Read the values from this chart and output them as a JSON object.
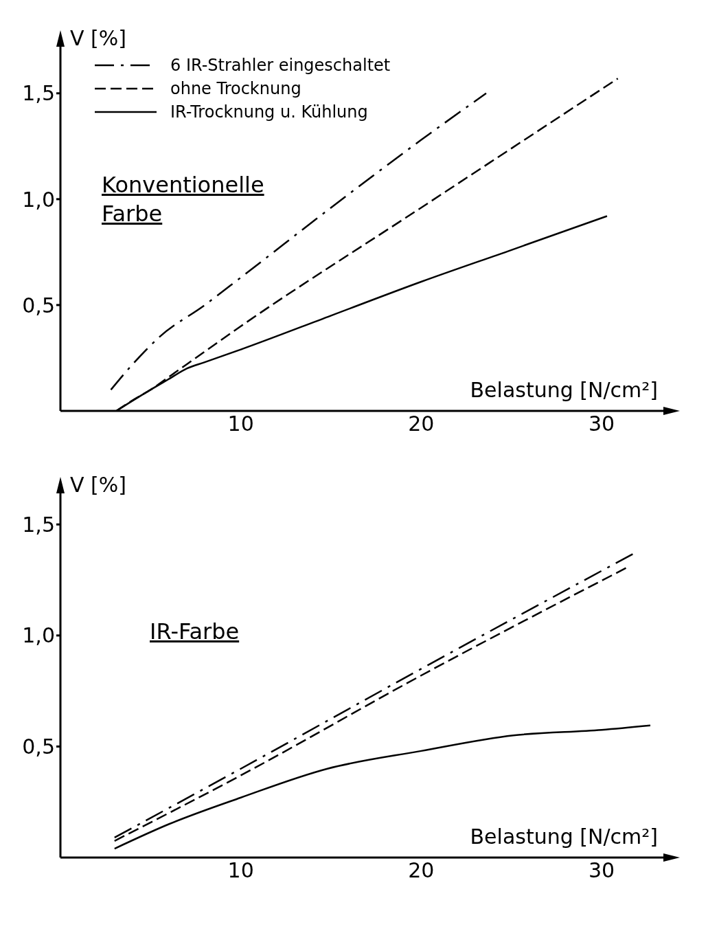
{
  "chart_data": [
    {
      "type": "line",
      "xlabel": "Belastung [N/cm²]",
      "ylabel": "V [%]",
      "xlim": [
        0,
        33.5
      ],
      "ylim": [
        0,
        1.72
      ],
      "xticks": [
        10,
        20,
        30
      ],
      "yticks": [
        {
          "value": 0.5,
          "label": "0,5"
        },
        {
          "value": 1.0,
          "label": "1,0"
        },
        {
          "value": 1.5,
          "label": "1,5"
        }
      ],
      "grid": false,
      "legend": "top left",
      "annotations": [
        "Konventionelle Farbe"
      ],
      "series": [
        {
          "name": "6 IR-Strahler eingeschaltet",
          "color": "#000000",
          "line_style": "dashdot",
          "x": [
            2.8,
            4,
            5.5,
            8,
            10,
            15,
            20,
            23.6
          ],
          "values": [
            0.1,
            0.22,
            0.35,
            0.5,
            0.63,
            0.96,
            1.28,
            1.5
          ]
        },
        {
          "name": "ohne Trocknung",
          "color": "#000000",
          "line_style": "dashed",
          "x": [
            3.1,
            4,
            5,
            6,
            7,
            10,
            20,
            30.9
          ],
          "values": [
            0,
            0.05,
            0.1,
            0.16,
            0.22,
            0.4,
            0.96,
            1.57
          ]
        },
        {
          "name": "IR-Trocknung u. Kühlung",
          "color": "#000000",
          "line_style": "solid",
          "x": [
            3.1,
            5,
            6,
            7,
            8,
            10,
            15,
            20,
            25,
            30.3
          ],
          "values": [
            0,
            0.1,
            0.15,
            0.2,
            0.23,
            0.29,
            0.45,
            0.61,
            0.76,
            0.92
          ]
        }
      ]
    },
    {
      "type": "line",
      "xlabel": "Belastung [N/cm²]",
      "ylabel": "V [%]",
      "xlim": [
        0,
        33.5
      ],
      "ylim": [
        0,
        1.64
      ],
      "xticks": [
        10,
        20,
        30
      ],
      "yticks": [
        {
          "value": 0.5,
          "label": "0,5"
        },
        {
          "value": 1.0,
          "label": "1,0"
        },
        {
          "value": 1.5,
          "label": "1,5"
        }
      ],
      "grid": false,
      "annotations": [
        "IR-Farbe"
      ],
      "series": [
        {
          "color": "#000000",
          "line_style": "dashdot",
          "x": [
            3,
            10,
            20,
            31.8
          ],
          "values": [
            0.09,
            0.4,
            0.85,
            1.37
          ]
        },
        {
          "color": "#000000",
          "line_style": "dashed",
          "x": [
            3,
            10,
            20,
            31.5
          ],
          "values": [
            0.075,
            0.37,
            0.82,
            1.31
          ]
        },
        {
          "color": "#000000",
          "line_style": "solid",
          "x": [
            3,
            6,
            10,
            14.8,
            20,
            25.1,
            30,
            32.7
          ],
          "values": [
            0.04,
            0.15,
            0.27,
            0.4,
            0.48,
            0.55,
            0.575,
            0.595
          ]
        }
      ]
    }
  ]
}
